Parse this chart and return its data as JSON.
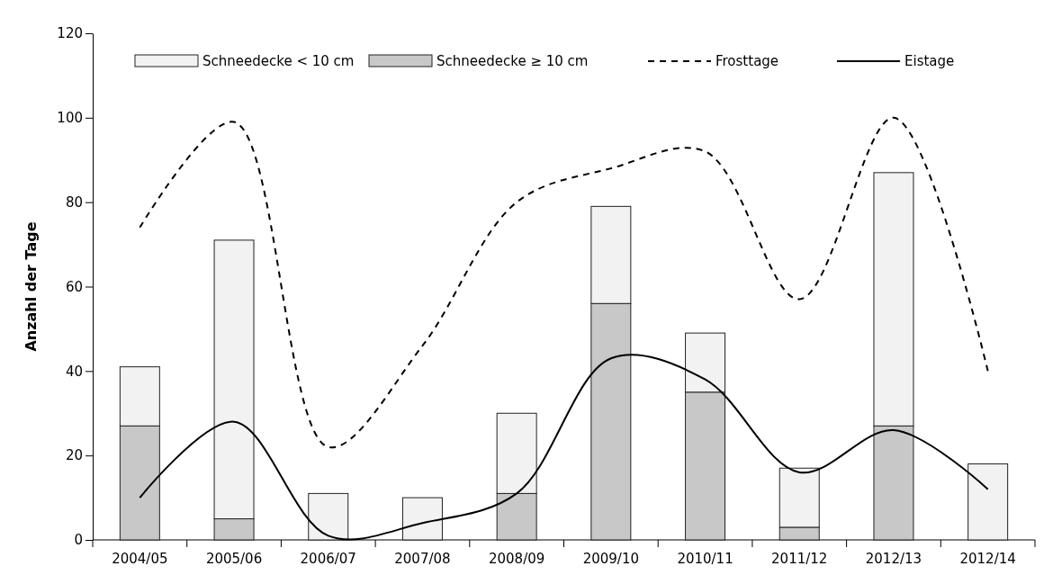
{
  "chart_data": {
    "type": "bar",
    "ylabel": "Anzahl der Tage",
    "categories": [
      "2004/05",
      "2005/06",
      "2006/07",
      "2007/08",
      "2008/09",
      "2009/10",
      "2010/11",
      "2011/12",
      "2012/13",
      "2012/14"
    ],
    "stacked": true,
    "ylim": [
      0,
      120
    ],
    "yticks": [
      0,
      20,
      40,
      60,
      80,
      100,
      120
    ],
    "grid": false,
    "legend": "top",
    "marker": "none",
    "series": [
      {
        "name": "Schneedecke ≥ 10 cm",
        "color": "#c8c8c8",
        "values": [
          27,
          5,
          0,
          0,
          11,
          56,
          35,
          3,
          27,
          0
        ]
      },
      {
        "name": "Schneedecke < 10 cm",
        "color": "#f2f2f2",
        "values": [
          14,
          66,
          11,
          10,
          19,
          23,
          14,
          14,
          60,
          18
        ]
      },
      {
        "name": "Frosttage",
        "type": "line",
        "color": "#000000",
        "line_style": "dashed",
        "values": [
          74,
          99,
          22,
          46,
          80,
          88,
          92,
          57,
          100,
          40
        ]
      },
      {
        "name": "Eistage",
        "type": "line",
        "color": "#000000",
        "line_style": "solid",
        "values": [
          10,
          28,
          1,
          4,
          11,
          43,
          38,
          16,
          26,
          12
        ]
      }
    ]
  }
}
